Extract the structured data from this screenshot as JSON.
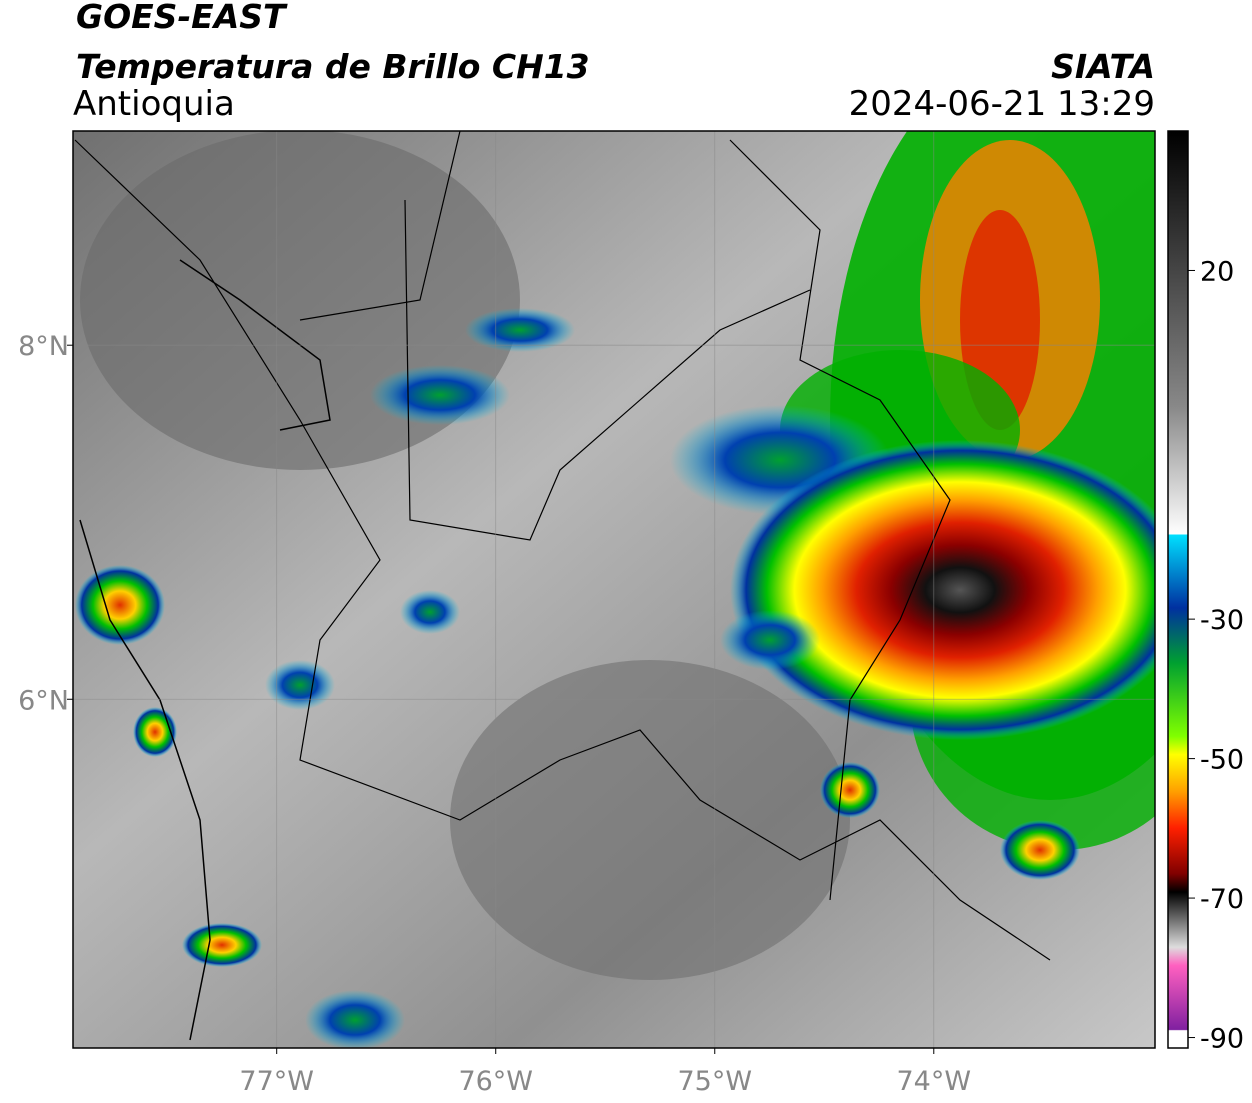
{
  "header": {
    "satellite": "GOES-EAST",
    "product": "Temperatura de Brillo CH13",
    "region": "Antioquia",
    "source": "SIATA",
    "datetime": "2024-06-21 13:29"
  },
  "map": {
    "xlim": [
      -77.93,
      -72.99
    ],
    "ylim": [
      4.03,
      9.21
    ],
    "xticks": [
      {
        "value": -77,
        "label": "77°W"
      },
      {
        "value": -76,
        "label": "76°W"
      },
      {
        "value": -75,
        "label": "75°W"
      },
      {
        "value": -74,
        "label": "74°W"
      }
    ],
    "yticks": [
      {
        "value": 8,
        "label": "8°N"
      },
      {
        "value": 6,
        "label": "6°N"
      }
    ],
    "grid": true
  },
  "colorbar": {
    "clim": [
      -91.5,
      40
    ],
    "ticks": [
      20,
      -30,
      -50,
      -70,
      -90
    ]
  }
}
